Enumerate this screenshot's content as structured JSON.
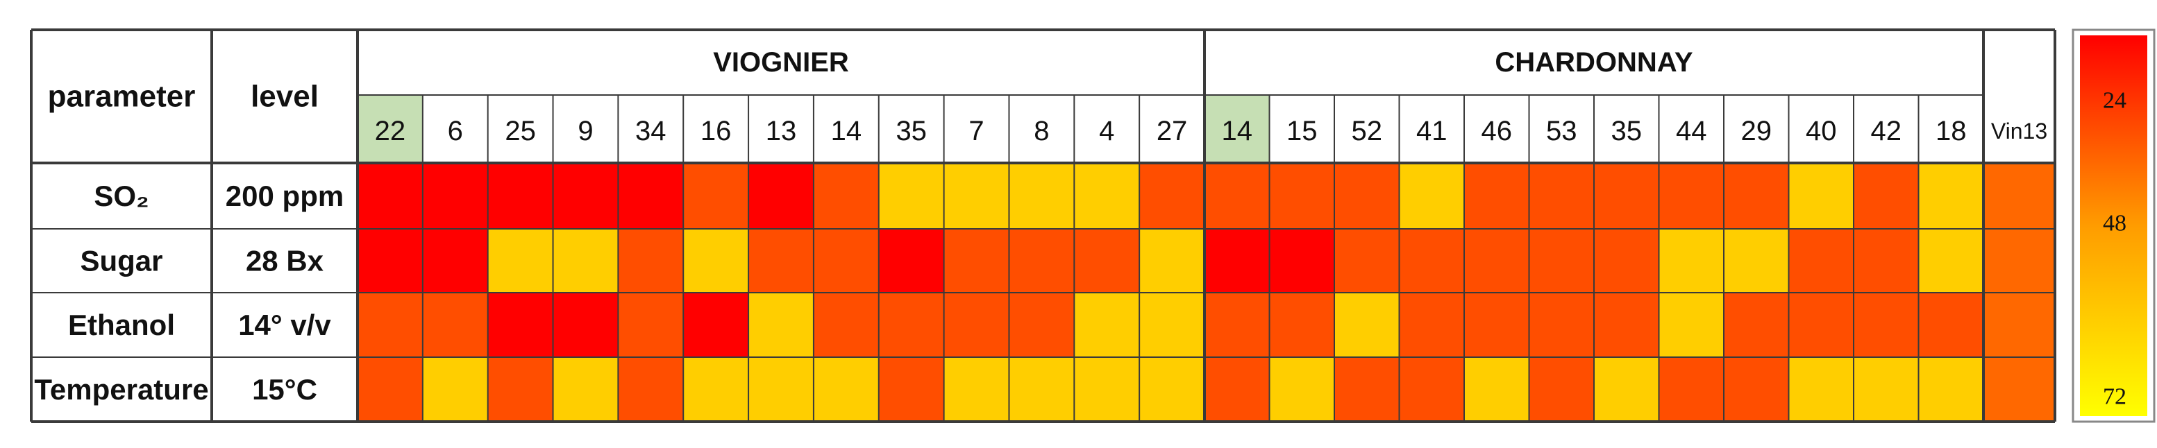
{
  "chart_data": {
    "type": "heatmap",
    "header": {
      "parameter": "parameter",
      "level": "level"
    },
    "groups": [
      {
        "name": "VIOGNIER",
        "columns": [
          "22",
          "6",
          "25",
          "9",
          "34",
          "16",
          "13",
          "14",
          "35",
          "7",
          "8",
          "4",
          "27"
        ],
        "highlight_index": 0
      },
      {
        "name": "CHARDONNAY",
        "columns": [
          "14",
          "15",
          "52",
          "41",
          "46",
          "53",
          "35",
          "44",
          "29",
          "40",
          "42",
          "18"
        ],
        "highlight_index": 0
      }
    ],
    "extra_column": "Vin13",
    "rows": [
      {
        "parameter": "SO₂",
        "level": "200 ppm",
        "values": [
          24,
          24,
          24,
          24,
          24,
          36,
          24,
          36,
          60,
          60,
          60,
          60,
          36,
          36,
          36,
          36,
          60,
          36,
          36,
          36,
          36,
          36,
          60,
          36,
          60,
          40
        ]
      },
      {
        "parameter": "Sugar",
        "level": "28 Bx",
        "values": [
          24,
          24,
          60,
          60,
          36,
          60,
          36,
          36,
          24,
          36,
          36,
          36,
          60,
          24,
          24,
          36,
          36,
          36,
          36,
          36,
          60,
          60,
          36,
          36,
          60,
          40
        ]
      },
      {
        "parameter": "Ethanol",
        "level": "14° v/v",
        "values": [
          36,
          36,
          24,
          24,
          36,
          24,
          60,
          36,
          36,
          36,
          36,
          60,
          60,
          36,
          36,
          60,
          36,
          36,
          36,
          36,
          60,
          36,
          36,
          36,
          36,
          40
        ]
      },
      {
        "parameter": "Temperature",
        "level": "15°C",
        "values": [
          36,
          60,
          36,
          60,
          36,
          60,
          60,
          60,
          36,
          60,
          60,
          60,
          60,
          36,
          60,
          36,
          36,
          60,
          36,
          60,
          36,
          36,
          60,
          60,
          60,
          40
        ]
      }
    ],
    "color_scale": {
      "ticks": [
        24,
        48,
        72
      ],
      "min": 24,
      "max": 72,
      "colors": {
        "low": "#ff0000",
        "mid": "#ff9900",
        "high": "#ffff00"
      }
    },
    "highlight_color": "#c6dfb4"
  }
}
